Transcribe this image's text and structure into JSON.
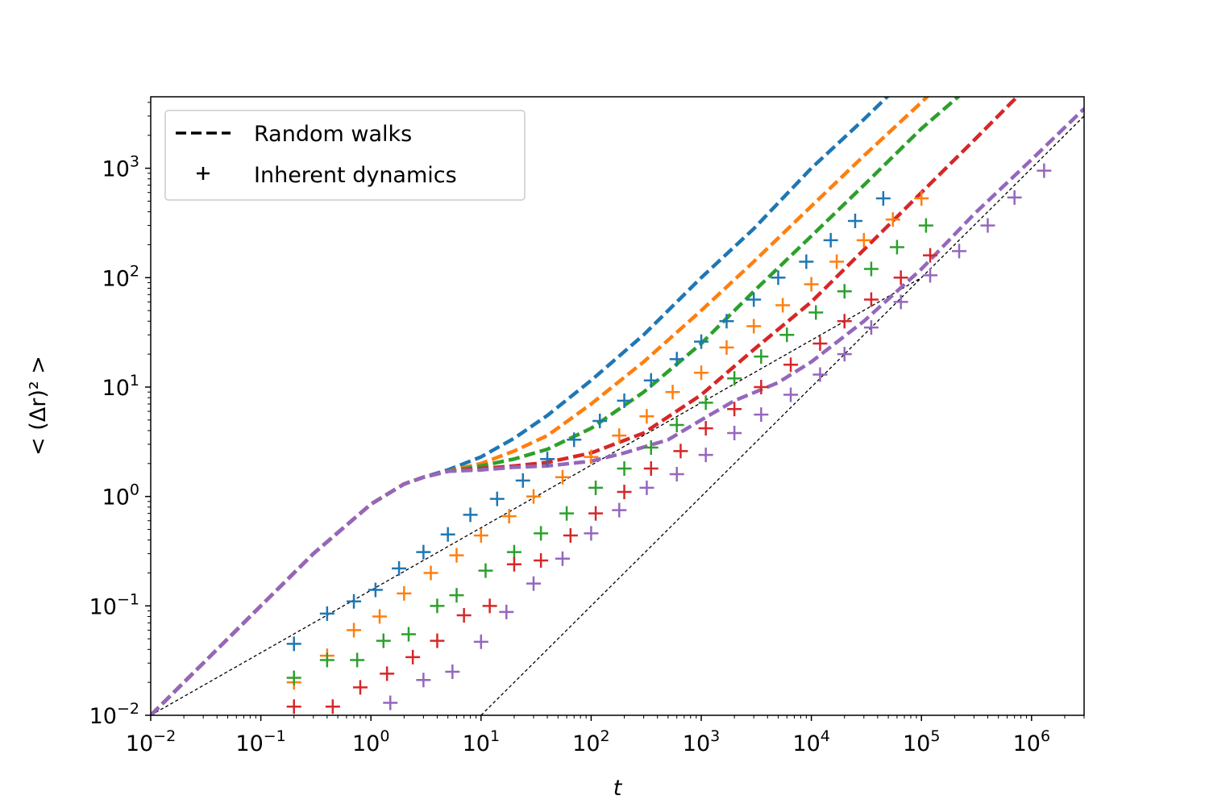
{
  "chart_data": {
    "type": "line",
    "title": "",
    "xlabel": "t",
    "ylabel": "< (Δr)² >",
    "xscale": "log",
    "yscale": "log",
    "xlim": [
      0.01,
      3000000
    ],
    "ylim": [
      0.01,
      4500
    ],
    "grid": false,
    "legend_location": "upper-left",
    "legend": [
      {
        "label": "Random walks",
        "marker": "dashed-line",
        "color": "#000000"
      },
      {
        "label": "Inherent dynamics",
        "marker": "plus",
        "color": "#000000"
      }
    ],
    "x_ticks": [
      {
        "base": "10",
        "exp": "−2"
      },
      {
        "base": "10",
        "exp": "−1"
      },
      {
        "base": "10",
        "exp": "0"
      },
      {
        "base": "10",
        "exp": "1"
      },
      {
        "base": "10",
        "exp": "2"
      },
      {
        "base": "10",
        "exp": "3"
      },
      {
        "base": "10",
        "exp": "4"
      },
      {
        "base": "10",
        "exp": "5"
      },
      {
        "base": "10",
        "exp": "6"
      }
    ],
    "y_ticks": [
      {
        "base": "10",
        "exp": "−2"
      },
      {
        "base": "10",
        "exp": "−1"
      },
      {
        "base": "10",
        "exp": "0"
      },
      {
        "base": "10",
        "exp": "1"
      },
      {
        "base": "10",
        "exp": "2"
      },
      {
        "base": "10",
        "exp": "3"
      }
    ],
    "reference_lines": [
      {
        "name": "upper-guide",
        "style": "thin-dashed",
        "color": "#000000",
        "x": [
          0.01,
          100000
        ],
        "y": [
          0.01,
          100
        ]
      },
      {
        "name": "lower-guide",
        "style": "thin-dashed",
        "color": "#000000",
        "x": [
          10,
          3000000
        ],
        "y": [
          0.01,
          3000
        ]
      }
    ],
    "series": [
      {
        "name": "blue",
        "color": "#1f77b4",
        "random_walk": {
          "x": [
            0.01,
            0.03,
            0.1,
            0.3,
            1,
            2,
            3,
            5,
            10,
            20,
            40,
            100,
            300,
            1000,
            3000,
            10000,
            30000,
            60000
          ],
          "y": [
            0.01,
            0.03,
            0.1,
            0.3,
            0.85,
            1.3,
            1.5,
            1.75,
            2.3,
            3.4,
            5.5,
            11.5,
            30,
            100,
            280,
            1000,
            2800,
            5500
          ]
        },
        "inherent": {
          "x": [
            0.2,
            0.4,
            0.7,
            1.1,
            1.8,
            3,
            5,
            8,
            14,
            24,
            40,
            70,
            120,
            200,
            350,
            600,
            1000,
            1700,
            3000,
            5000,
            9000,
            15000,
            25000,
            45000
          ],
          "y": [
            0.045,
            0.085,
            0.11,
            0.14,
            0.22,
            0.31,
            0.45,
            0.68,
            0.95,
            1.4,
            2.2,
            3.3,
            4.9,
            7.5,
            11.5,
            18,
            26,
            40,
            63,
            100,
            140,
            220,
            330,
            530
          ]
        }
      },
      {
        "name": "orange",
        "color": "#ff7f0e",
        "random_walk": {
          "x": [
            0.01,
            0.03,
            0.1,
            0.3,
            1,
            2,
            3,
            5,
            10,
            20,
            40,
            100,
            300,
            1000,
            3000,
            10000,
            30000,
            100000,
            150000
          ],
          "y": [
            0.01,
            0.03,
            0.1,
            0.3,
            0.85,
            1.3,
            1.5,
            1.7,
            2.0,
            2.6,
            3.6,
            7,
            17,
            50,
            140,
            450,
            1300,
            4000,
            6000
          ]
        },
        "inherent": {
          "x": [
            0.2,
            0.4,
            0.7,
            1.2,
            2,
            3.5,
            6,
            10,
            18,
            30,
            55,
            100,
            180,
            320,
            550,
            1000,
            1700,
            3000,
            5500,
            10000,
            17000,
            30000,
            55000,
            100000
          ],
          "y": [
            0.02,
            0.035,
            0.06,
            0.08,
            0.13,
            0.2,
            0.29,
            0.44,
            0.66,
            1.0,
            1.5,
            2.3,
            3.6,
            5.4,
            9,
            13.5,
            23,
            36,
            56,
            87,
            140,
            220,
            340,
            530
          ]
        }
      },
      {
        "name": "green",
        "color": "#2ca02c",
        "random_walk": {
          "x": [
            0.01,
            0.03,
            0.1,
            0.3,
            1,
            2,
            3,
            5,
            10,
            20,
            40,
            100,
            300,
            1000,
            3000,
            10000,
            30000,
            100000,
            300000
          ],
          "y": [
            0.01,
            0.03,
            0.1,
            0.3,
            0.85,
            1.3,
            1.5,
            1.7,
            1.9,
            2.2,
            2.7,
            4.2,
            9,
            25,
            75,
            240,
            700,
            2300,
            6000
          ]
        },
        "inherent": {
          "x": [
            0.2,
            0.4,
            0.75,
            1.3,
            2.2,
            4,
            6,
            11,
            20,
            35,
            60,
            110,
            200,
            350,
            600,
            1100,
            2000,
            3500,
            6000,
            11000,
            20000,
            35000,
            60000,
            110000
          ],
          "y": [
            0.022,
            0.032,
            0.032,
            0.048,
            0.055,
            0.1,
            0.125,
            0.21,
            0.31,
            0.46,
            0.7,
            1.2,
            1.8,
            2.8,
            4.5,
            7.2,
            12,
            19,
            30,
            48,
            75,
            120,
            190,
            300
          ]
        }
      },
      {
        "name": "red",
        "color": "#d62728",
        "random_walk": {
          "x": [
            0.01,
            0.03,
            0.1,
            0.3,
            1,
            2,
            3,
            5,
            10,
            20,
            40,
            100,
            300,
            1000,
            3000,
            10000,
            30000,
            100000,
            300000,
            900000
          ],
          "y": [
            0.01,
            0.03,
            0.1,
            0.3,
            0.85,
            1.3,
            1.5,
            1.7,
            1.8,
            1.9,
            2.05,
            2.5,
            3.8,
            8.5,
            22,
            60,
            180,
            600,
            1800,
            5500
          ]
        },
        "inherent": {
          "x": [
            0.2,
            0.45,
            0.8,
            1.4,
            2.4,
            4,
            7,
            12,
            20,
            35,
            65,
            110,
            200,
            350,
            650,
            1100,
            2000,
            3500,
            6500,
            12000,
            20000,
            35000,
            65000,
            120000
          ],
          "y": [
            0.012,
            0.012,
            0.018,
            0.024,
            0.034,
            0.048,
            0.082,
            0.1,
            0.24,
            0.26,
            0.44,
            0.7,
            1.1,
            1.8,
            2.6,
            4.2,
            6.3,
            10,
            16,
            25,
            40,
            63,
            100,
            160
          ]
        }
      },
      {
        "name": "purple",
        "color": "#9467bd",
        "random_walk": {
          "x": [
            0.01,
            0.03,
            0.1,
            0.3,
            1,
            2,
            3,
            5,
            10,
            20,
            40,
            100,
            200,
            500,
            1000,
            2000,
            5000,
            10000,
            30000,
            100000,
            300000,
            1000000,
            3000000
          ],
          "y": [
            0.01,
            0.03,
            0.1,
            0.3,
            0.85,
            1.3,
            1.5,
            1.7,
            1.75,
            1.85,
            1.9,
            2.1,
            2.5,
            3.3,
            5,
            7.5,
            11,
            17,
            40,
            120,
            380,
            1200,
            3500
          ]
        },
        "inherent": {
          "x": [
            1.5,
            3,
            5.5,
            10,
            17,
            30,
            55,
            100,
            180,
            320,
            600,
            1100,
            2000,
            3500,
            6500,
            12000,
            20000,
            35000,
            65000,
            120000,
            220000,
            400000,
            700000,
            1300000
          ],
          "y": [
            0.013,
            0.021,
            0.025,
            0.047,
            0.088,
            0.16,
            0.27,
            0.46,
            0.75,
            1.2,
            1.6,
            2.4,
            3.8,
            5.6,
            8.5,
            13,
            20,
            35,
            60,
            105,
            175,
            300,
            540,
            950
          ]
        }
      }
    ]
  }
}
